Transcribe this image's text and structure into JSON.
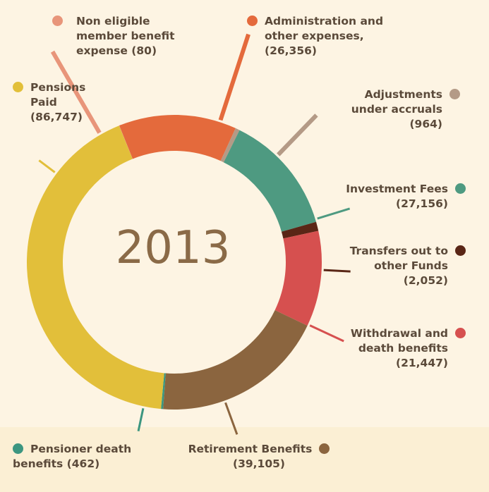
{
  "chart_data": {
    "type": "pie",
    "title": "2013",
    "slices": [
      {
        "label_lines": [
          "Non eligible",
          "member benefit",
          "expense (80)"
        ],
        "value": 80,
        "color": "#e8957a"
      },
      {
        "label_lines": [
          "Administration and",
          "other expenses,",
          "(26,356)"
        ],
        "value": 26356,
        "color": "#e46a3c"
      },
      {
        "label_lines": [
          "Adjustments",
          "under accruals",
          "(964)"
        ],
        "value": 964,
        "color": "#b49a86"
      },
      {
        "label_lines": [
          "Investment Fees",
          "(27,156)"
        ],
        "value": 27156,
        "color": "#4e9a81"
      },
      {
        "label_lines": [
          "Transfers out to",
          "other Funds",
          "(2,052)"
        ],
        "value": 2052,
        "color": "#5a2616"
      },
      {
        "label_lines": [
          "Withdrawal and",
          "death benefits",
          "(21,447)"
        ],
        "value": 21447,
        "color": "#d6504f"
      },
      {
        "label_lines": [
          "Retirement Benefits",
          "(39,105)"
        ],
        "value": 39105,
        "color": "#8b653f"
      },
      {
        "label_lines": [
          "Pensioner death",
          "benefits (462)"
        ],
        "value": 462,
        "color": "#3c9680"
      },
      {
        "label_lines": [
          "Pensions",
          "Paid",
          "(86,747)"
        ],
        "value": 86747,
        "color": "#e2bf3a"
      }
    ]
  }
}
